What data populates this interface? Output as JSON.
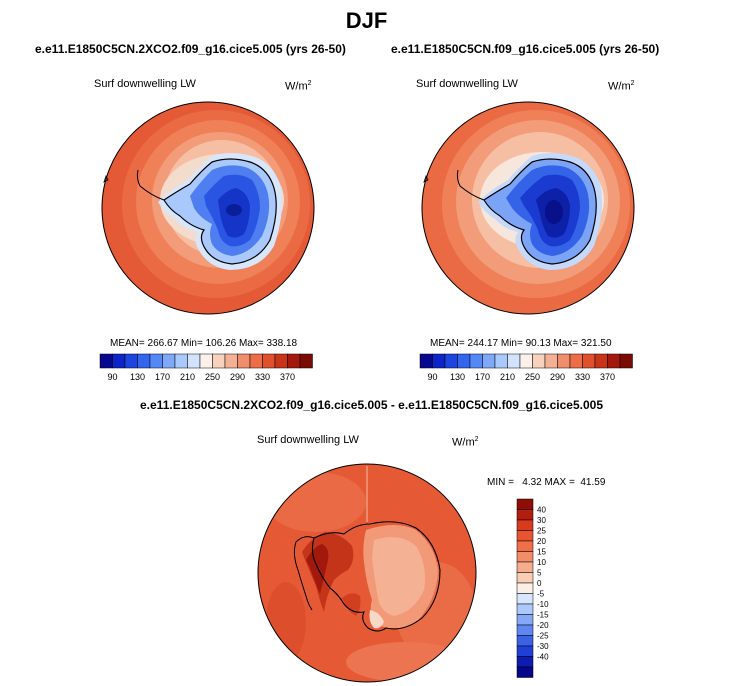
{
  "main_title": "DJF",
  "panels": [
    {
      "title": "e.e11.E1850C5CN.2XCO2.f09_g16.cice5.005 (yrs 26-50)",
      "variable": "Surf downwelling LW",
      "unit_base": "W/m",
      "unit_exp": "2",
      "stats": "MEAN= 266.67  Min= 106.26  Max= 338.18"
    },
    {
      "title": "e.e11.E1850C5CN.f09_g16.cice5.005 (yrs 26-50)",
      "variable": "Surf downwelling LW",
      "unit_base": "W/m",
      "unit_exp": "2",
      "stats": "MEAN= 244.17  Min= 90.13  Max= 321.50"
    }
  ],
  "abs_colorbar": {
    "labels": [
      "90",
      "130",
      "170",
      "210",
      "250",
      "290",
      "330",
      "370"
    ],
    "colors": [
      "#08088f",
      "#0c24c8",
      "#1d45e0",
      "#3366ee",
      "#5588f4",
      "#7fa8f8",
      "#a9c8fb",
      "#d2e4fd",
      "#fbf1ea",
      "#f8d2bd",
      "#f4b094",
      "#f08e6c",
      "#eb6e48",
      "#e0502d",
      "#c8341a",
      "#a4170c",
      "#7a0a04"
    ]
  },
  "diff_panel": {
    "title": "e.e11.E1850C5CN.2XCO2.f09_g16.cice5.005 - e.e11.E1850C5CN.f09_g16.cice5.005",
    "variable": "Surf downwelling LW",
    "unit_base": "W/m",
    "unit_exp": "2",
    "stats": "MIN =   4.32 MAX =  41.59"
  },
  "diff_colorbar": {
    "labels": [
      "40",
      "30",
      "25",
      "20",
      "15",
      "10",
      "5",
      "0",
      "-5",
      "-10",
      "-15",
      "-20",
      "-25",
      "-30",
      "-40"
    ],
    "colors": [
      "#8e0e06",
      "#b21d0d",
      "#d83a1c",
      "#e85430",
      "#ef7048",
      "#f38d68",
      "#f6ad8d",
      "#f9ccb4",
      "#fbeee4",
      "#d6e6fd",
      "#adc9fb",
      "#86a9f7",
      "#5e87f1",
      "#3a62e6",
      "#1f3fd5",
      "#0c1bb0",
      "#06068a"
    ]
  }
}
